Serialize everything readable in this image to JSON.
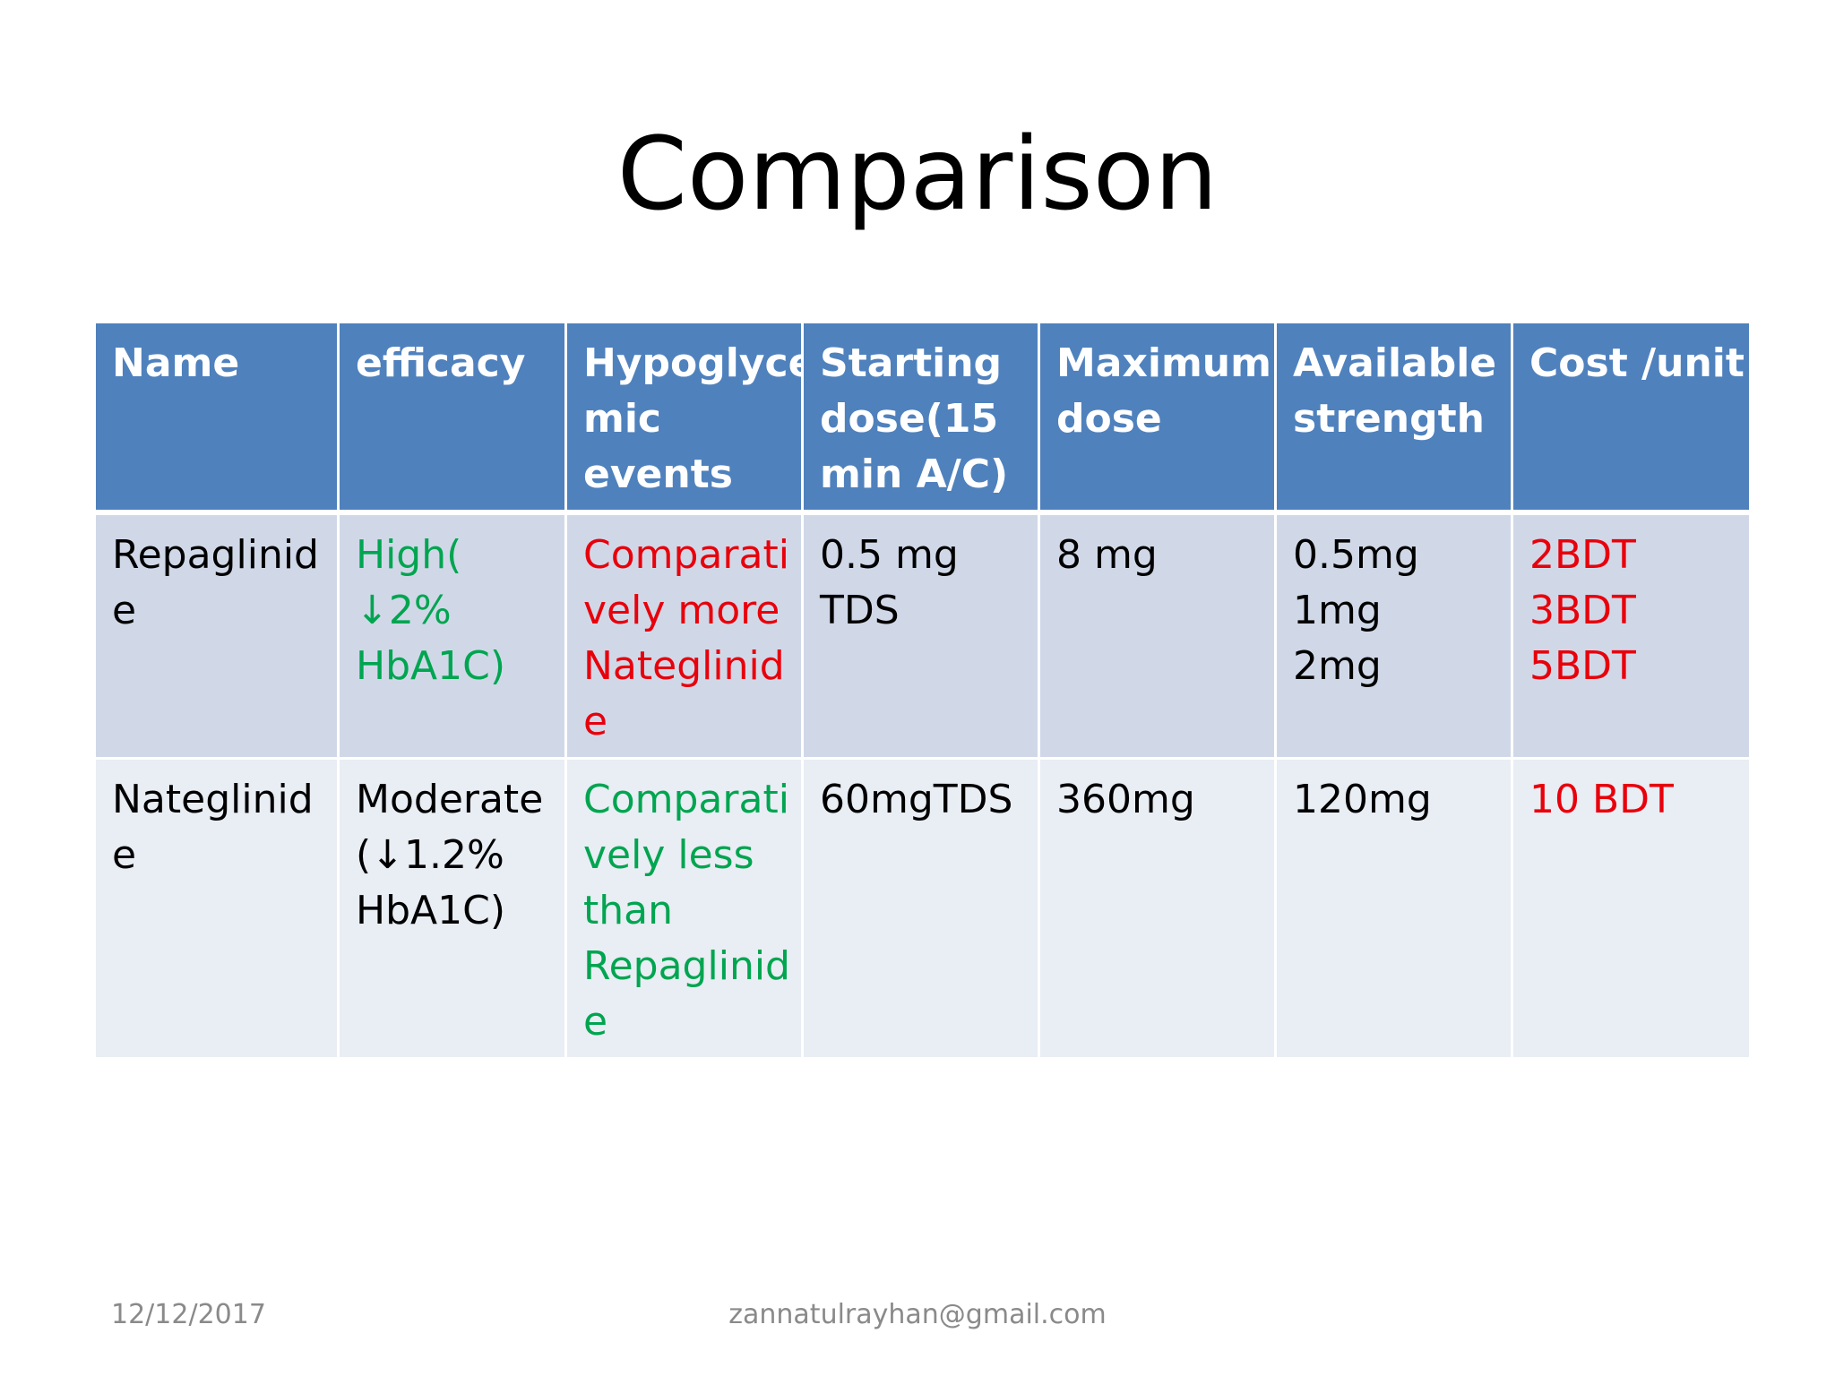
{
  "slide": {
    "title": "Comparison",
    "footer": {
      "date": "12/12/2017",
      "email": "zannatulrayhan@gmail.com"
    }
  },
  "table": {
    "headers": [
      [
        "Name"
      ],
      [
        "efficacy"
      ],
      [
        "Hypoglyce",
        "mic",
        "events"
      ],
      [
        "Starting",
        "dose(15",
        "min A/C)"
      ],
      [
        "Maximum",
        "dose"
      ],
      [
        "Available",
        "strength"
      ],
      [
        "Cost /unit"
      ]
    ],
    "rows": [
      {
        "name": [
          "Repaglinid",
          "e"
        ],
        "efficacy": [
          "High(",
          "↓2%",
          "HbA1C)"
        ],
        "hypoglycemic": [
          "Comparati",
          "vely more",
          "Nateglinid",
          "e"
        ],
        "starting_dose": [
          "0.5 mg",
          "TDS"
        ],
        "max_dose": [
          "8 mg"
        ],
        "available_strength": [
          "0.5mg",
          "1mg",
          "2mg"
        ],
        "cost": [
          "2BDT",
          "3BDT",
          "5BDT"
        ]
      },
      {
        "name": [
          "Nateglinid",
          "e"
        ],
        "efficacy": [
          "Moderate",
          "(↓1.2%",
          "HbA1C)"
        ],
        "hypoglycemic": [
          "Comparati",
          "vely less",
          "than",
          "Repaglinid",
          "e"
        ],
        "starting_dose": [
          "60mgTDS"
        ],
        "max_dose": [
          "360mg"
        ],
        "available_strength": [
          "120mg"
        ],
        "cost": [
          "10 BDT"
        ]
      }
    ]
  },
  "colors": {
    "header_bg": "#4f81bd",
    "row1_bg": "#d0d8e8",
    "row2_bg": "#e9edf4",
    "green_text": "#00a550",
    "red_text": "#e8000b",
    "footer_text": "#8a8a8a"
  }
}
